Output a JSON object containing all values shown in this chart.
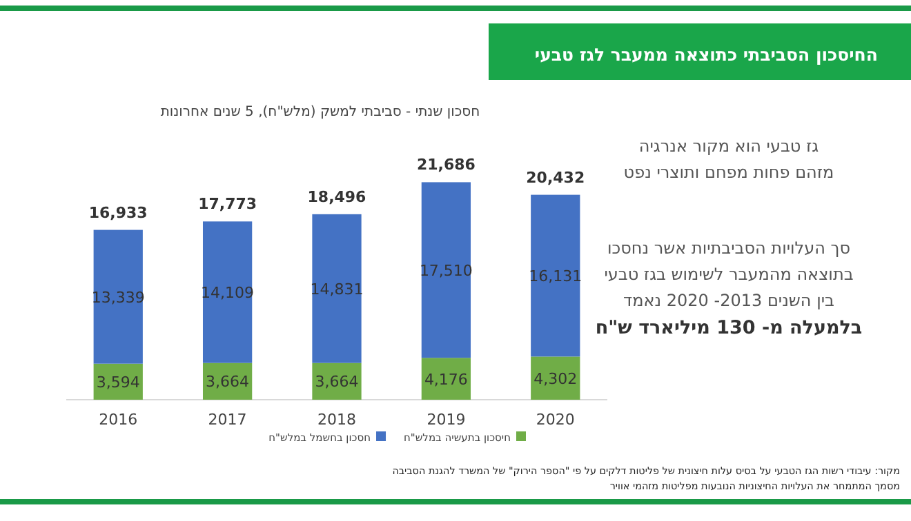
{
  "chart_data": {
    "type": "bar",
    "stacked": true,
    "legend": "bottom",
    "title": "החיסכון הסביבתי כתוצאה ממעבר לגז טבעי",
    "subtitle": "חסכון שנתי - סביבתי למשק (מלש\"ח), 5 שנים אחרונות",
    "categories": [
      "2016",
      "2017",
      "2018",
      "2019",
      "2020"
    ],
    "series": [
      {
        "name": "חיסכון בתעשיה במלש\"ח",
        "color": "#70ad47",
        "values": [
          3594,
          3664,
          3664,
          4176,
          4302
        ],
        "value_labels": [
          "3,594",
          "3,664",
          "3,664",
          "4,176",
          "4,302"
        ]
      },
      {
        "name": "חסכון בחשמל במלש\"ח",
        "color": "#4472c4",
        "values": [
          13339,
          14109,
          14831,
          17510,
          16131
        ],
        "value_labels": [
          "13,339",
          "14,109",
          "14,831",
          "17,510",
          "16,131"
        ]
      }
    ],
    "totals": [
      "16,933",
      "17,773",
      "18,496",
      "21,686",
      "20,432"
    ],
    "annotations": [
      "גז טבעי הוא מקור אנרגיה\nמזהם פחות מפחם ותוצרי נפט",
      "סך העלויות הסביבתיות אשר נחסכו\nבתוצאה מהמעבר לשימוש בגז טבעי\nבין השנים  2013- 2020 נאמד",
      "בלמעלה מ- 130 מיליארד ש\"ח",
      "מקור: עיבודי רשות הגז הטבעי על בסיס עלות חיצונית של פליטות דלקים על פי \"הספר הירוק\" של המשרד להגנת הסביבה\nמסמך המתמחר את העלויות החיצוניות הנובעות מפליטות מזהמי אוויר"
    ]
  }
}
